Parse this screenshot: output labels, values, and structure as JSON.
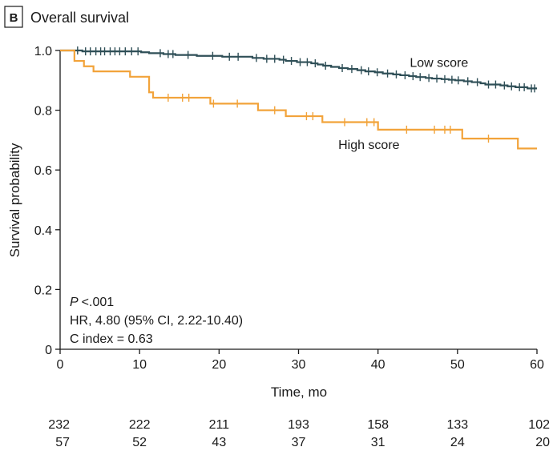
{
  "panel": {
    "letter": "B",
    "title": "Overall survival"
  },
  "chart_data": {
    "type": "line",
    "step": true,
    "xlabel": "Time, mo",
    "ylabel": "Survival probability",
    "xlim": [
      0,
      60
    ],
    "ylim": [
      0,
      1.0
    ],
    "x_ticks": [
      "0",
      "10",
      "20",
      "30",
      "40",
      "50",
      "60"
    ],
    "y_ticks": [
      "0",
      "0.2",
      "0.4",
      "0.6",
      "0.8",
      "1.0"
    ],
    "grid": false,
    "legend": "none",
    "annotations": {
      "p_value": "<.001",
      "p_label": "P",
      "hr": "HR, 4.80 (95% CI, 2.22-10.40)",
      "c_index": "C index = 0.63"
    },
    "series": [
      {
        "name": "Low score",
        "color": "#2f4f57",
        "x": [
          0,
          2.8,
          10.2,
          11.2,
          13.0,
          14.5,
          17.2,
          20.4,
          24.2,
          25.6,
          27.6,
          28.4,
          29.8,
          31.6,
          32.4,
          33.1,
          34.1,
          35.1,
          36.2,
          37.4,
          38.4,
          39.6,
          40.6,
          41.9,
          42.8,
          43.9,
          44.8,
          46.0,
          46.8,
          48.0,
          48.9,
          49.7,
          50.8,
          51.8,
          52.9,
          53.5,
          55.4,
          56.3,
          57.3,
          58.8,
          60
        ],
        "y": [
          1.0,
          0.997,
          0.994,
          0.991,
          0.988,
          0.985,
          0.982,
          0.979,
          0.975,
          0.972,
          0.969,
          0.965,
          0.961,
          0.957,
          0.953,
          0.949,
          0.945,
          0.941,
          0.938,
          0.934,
          0.93,
          0.927,
          0.923,
          0.92,
          0.917,
          0.914,
          0.911,
          0.908,
          0.906,
          0.904,
          0.902,
          0.9,
          0.897,
          0.894,
          0.89,
          0.886,
          0.883,
          0.88,
          0.877,
          0.873,
          0.873
        ],
        "censor_x": [
          2.2,
          3.2,
          3.8,
          4.5,
          5.1,
          5.6,
          6.3,
          6.9,
          7.5,
          8.2,
          9.0,
          9.8,
          12.6,
          13.6,
          14.2,
          16.1,
          19.2,
          21.3,
          22.4,
          24.7,
          26.0,
          27.0,
          28.1,
          29.1,
          30.2,
          31.1,
          32.1,
          33.4,
          35.5,
          36.7,
          37.9,
          38.8,
          39.9,
          41.2,
          42.3,
          43.4,
          44.4,
          45.3,
          46.4,
          47.4,
          48.4,
          49.3,
          50.1,
          51.3,
          52.5,
          53.9,
          54.8,
          55.9,
          56.8,
          57.8,
          58.4,
          59.3,
          59.7
        ],
        "label_pos": [
          44,
          0.945
        ]
      },
      {
        "name": "High score",
        "color": "#f2a33a",
        "x": [
          0,
          1.8,
          3.0,
          4.2,
          8.8,
          11.2,
          11.7,
          18.9,
          24.9,
          28.4,
          33.0,
          40.0,
          50.6,
          57.6,
          60
        ],
        "y": [
          1.0,
          0.965,
          0.947,
          0.93,
          0.912,
          0.86,
          0.842,
          0.822,
          0.8,
          0.78,
          0.76,
          0.735,
          0.705,
          0.672,
          0.672
        ],
        "censor_x": [
          13.6,
          15.4,
          16.2,
          19.3,
          22.3,
          27.0,
          31.0,
          31.8,
          35.8,
          38.6,
          39.5,
          43.6,
          47.1,
          48.4,
          49.1,
          53.9
        ],
        "label_pos": [
          35,
          0.67
        ]
      }
    ],
    "risk_table": [
      {
        "values": [
          "232",
          "222",
          "211",
          "193",
          "158",
          "133",
          "102"
        ]
      },
      {
        "values": [
          "57",
          "52",
          "43",
          "37",
          "31",
          "24",
          "20"
        ]
      }
    ]
  }
}
